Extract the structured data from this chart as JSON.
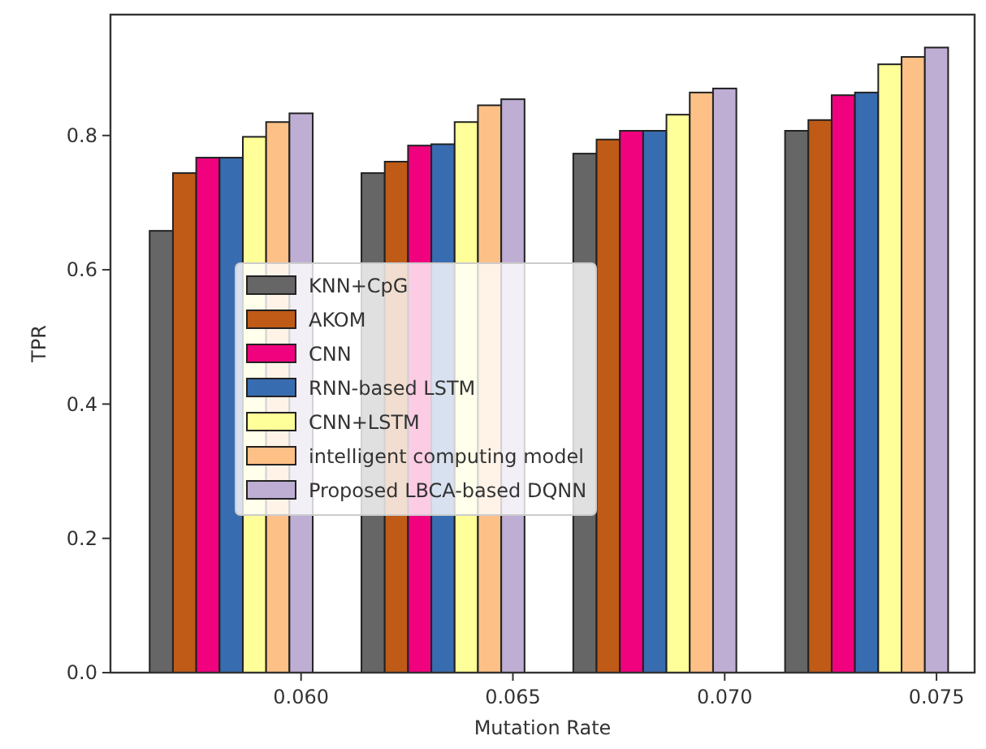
{
  "chart_data": {
    "type": "bar",
    "xlabel": "Mutation Rate",
    "ylabel": "TPR",
    "xlim": [
      0.0555,
      0.0759
    ],
    "xticks": [
      {
        "value": 0.06,
        "label": "0.060"
      },
      {
        "value": 0.065,
        "label": "0.065"
      },
      {
        "value": 0.07,
        "label": "0.070"
      },
      {
        "value": 0.075,
        "label": "0.075"
      }
    ],
    "ylim": [
      0,
      0.98
    ],
    "yticks": [
      {
        "value": 0,
        "label": "0.0"
      },
      0.2,
      0.4,
      0.6,
      0.8
    ],
    "legend": "center left",
    "grid": false,
    "series": [
      {
        "name": "KNN+CpG",
        "color": "#666666",
        "x": [
          0.0567,
          0.0617,
          0.0667,
          0.0717
        ],
        "values": [
          0.658,
          0.744,
          0.773,
          0.807
        ]
      },
      {
        "name": "AKOM",
        "color": "#bf5b17",
        "x": [
          0.05725,
          0.06225,
          0.06725,
          0.07225
        ],
        "values": [
          0.744,
          0.761,
          0.794,
          0.823
        ]
      },
      {
        "name": "CNN",
        "color": "#f0027f",
        "x": [
          0.0578,
          0.0628,
          0.0678,
          0.0728
        ],
        "values": [
          0.767,
          0.785,
          0.807,
          0.86
        ]
      },
      {
        "name": "RNN-based LSTM",
        "color": "#386cb0",
        "x": [
          0.05835,
          0.06335,
          0.06835,
          0.07335
        ],
        "values": [
          0.767,
          0.787,
          0.807,
          0.864
        ]
      },
      {
        "name": "CNN+LSTM",
        "color": "#ffff99",
        "x": [
          0.0589,
          0.0639,
          0.0689,
          0.0739
        ],
        "values": [
          0.798,
          0.82,
          0.831,
          0.906
        ]
      },
      {
        "name": "intelligent computing model",
        "color": "#fdc086",
        "x": [
          0.05945,
          0.06445,
          0.06945,
          0.07445
        ],
        "values": [
          0.82,
          0.845,
          0.864,
          0.917
        ]
      },
      {
        "name": "Proposed LBCA-based DQNN",
        "color": "#beaed4",
        "x": [
          0.06,
          0.065,
          0.07,
          0.075
        ],
        "values": [
          0.833,
          0.854,
          0.87,
          0.931
        ]
      }
    ]
  }
}
